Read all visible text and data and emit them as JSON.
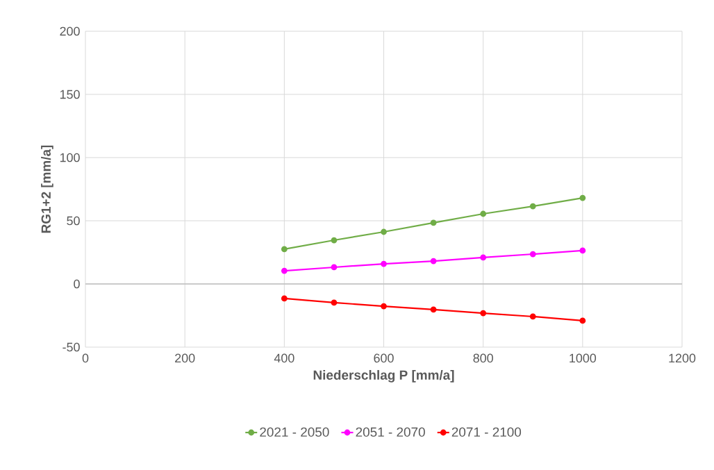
{
  "chart_data": {
    "type": "line",
    "xlabel": "Niederschlag P [mm/a]",
    "ylabel": "RG1+2 [mm/a]",
    "x": [
      400,
      500,
      600,
      700,
      800,
      900,
      1000
    ],
    "series": [
      {
        "name": "2021 - 2050",
        "color": "#70ad47",
        "values": [
          27.5,
          34.6,
          41.2,
          48.4,
          55.5,
          61.5,
          68.1
        ]
      },
      {
        "name": "2051 - 2070",
        "color": "#ff00ff",
        "values": [
          10.4,
          13.2,
          15.9,
          18.1,
          20.9,
          23.6,
          26.4
        ]
      },
      {
        "name": "2071 - 2100",
        "color": "#ff0000",
        "values": [
          -11.5,
          -14.8,
          -17.6,
          -20.3,
          -23.1,
          -25.8,
          -29.1
        ]
      }
    ],
    "xlim": [
      0,
      1200
    ],
    "xticks": [
      0,
      200,
      400,
      600,
      800,
      1000,
      1200
    ],
    "ylim": [
      -50,
      200
    ],
    "yticks": [
      -50,
      0,
      50,
      100,
      150,
      200
    ],
    "grid": true,
    "legend": "bottom",
    "marker": "circle",
    "line_style": "solid"
  }
}
